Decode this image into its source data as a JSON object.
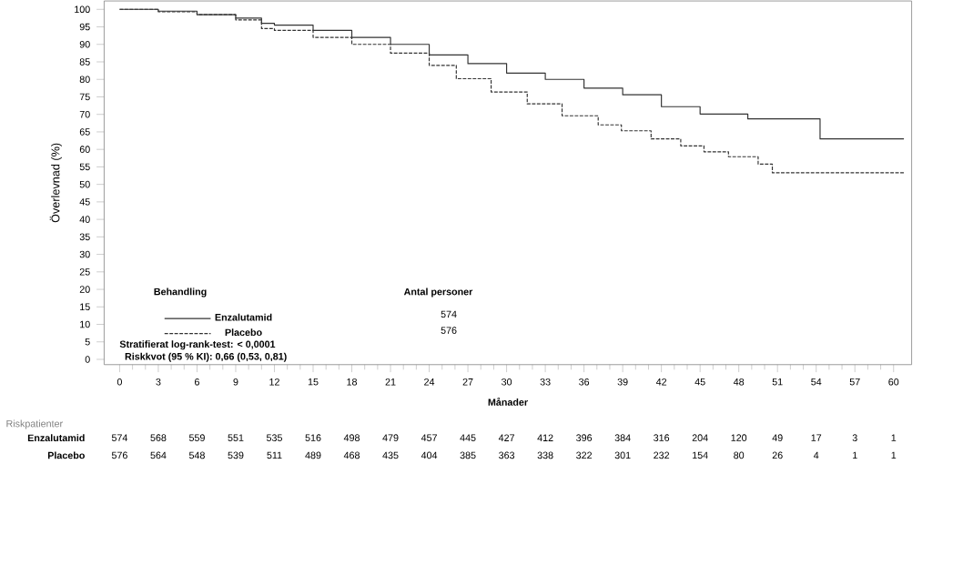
{
  "chart_data": {
    "type": "step",
    "xlabel": "Månader",
    "ylabel": "Överlevnad  (%)",
    "legend_title": "Behandling",
    "legend": "bottom left",
    "xlim": [
      -1.2,
      61.4
    ],
    "ylim": [
      -1.5,
      102.4
    ],
    "xticks": [
      0,
      3,
      6,
      9,
      12,
      15,
      18,
      21,
      24,
      27,
      30,
      33,
      36,
      39,
      42,
      45,
      48,
      51,
      54,
      57,
      60
    ],
    "yticks": [
      0,
      5,
      10,
      15,
      20,
      25,
      30,
      35,
      40,
      45,
      50,
      55,
      60,
      65,
      70,
      75,
      80,
      85,
      90,
      95,
      100
    ],
    "series": [
      {
        "name": "Enzalutamid",
        "color": "#333333",
        "line_style": "solid",
        "x": [
          0,
          3,
          6,
          9,
          11,
          12,
          15,
          18,
          21,
          24,
          27,
          30,
          33,
          36,
          39,
          42,
          45,
          48.7,
          54.3,
          60.8
        ],
        "values": [
          100,
          99.5,
          98.5,
          97.5,
          96,
          95.5,
          94,
          92,
          90,
          87,
          84.5,
          81.8,
          80,
          77.5,
          75.6,
          72.2,
          70.1,
          68.7,
          63,
          63
        ]
      },
      {
        "name": "Placebo",
        "color": "#333333",
        "line_style": "dashed",
        "x": [
          0,
          3,
          6,
          9,
          11,
          12,
          15,
          18,
          21,
          24,
          26.1,
          28.8,
          31.6,
          34.3,
          37.1,
          38.9,
          41.2,
          43.5,
          45.3,
          47.2,
          49.5,
          50.6,
          60.8
        ],
        "values": [
          100,
          99.3,
          98.5,
          97,
          94.5,
          94,
          92,
          90,
          87.5,
          84,
          80.2,
          76.4,
          73,
          69.6,
          67,
          65.3,
          63,
          61,
          59.3,
          57.9,
          55.8,
          53.3,
          53.3
        ]
      }
    ],
    "annotations": [
      "Stratifierat log-rank-test: < 0,0001",
      "Riskkvot (95 % KI): 0,66 (0,53, 0,81)",
      "Antal personer",
      "574",
      "576",
      "Riskpatienter",
      "Enzalutamid",
      "Placebo",
      "574",
      "568",
      "559",
      "551",
      "535",
      "516",
      "498",
      "479",
      "457",
      "445",
      "427",
      "412",
      "396",
      "384",
      "316",
      "204",
      "120",
      "49",
      "17",
      "3",
      "1",
      "576",
      "564",
      "548",
      "539",
      "511",
      "489",
      "468",
      "435",
      "404",
      "385",
      "363",
      "338",
      "322",
      "301",
      "232",
      "154",
      "80",
      "26",
      "4",
      "1",
      "1"
    ]
  }
}
